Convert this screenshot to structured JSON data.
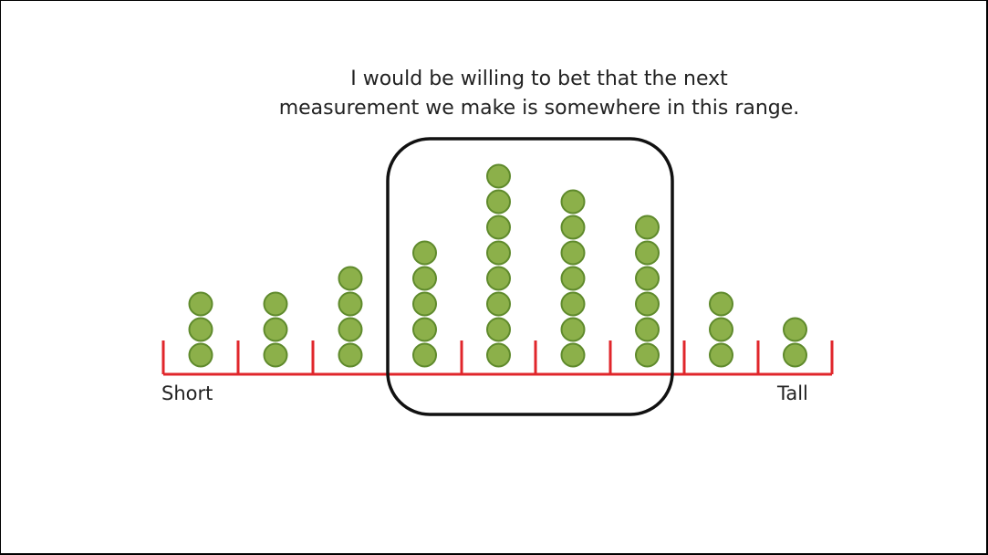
{
  "caption": {
    "line1": "I would be willing to bet that the next",
    "line2": "measurement we make is somewhere in this range."
  },
  "axis": {
    "left_label": "Short",
    "right_label": "Tall",
    "color": "#e0262b"
  },
  "dot_plot": {
    "counts": [
      3,
      3,
      4,
      5,
      8,
      7,
      6,
      3,
      2
    ],
    "dot_fill": "#8cb04a",
    "dot_stroke": "#5f8a2c",
    "highlighted_range_bins": [
      3,
      6
    ]
  },
  "highlight_box": {
    "stroke": "#111111"
  }
}
